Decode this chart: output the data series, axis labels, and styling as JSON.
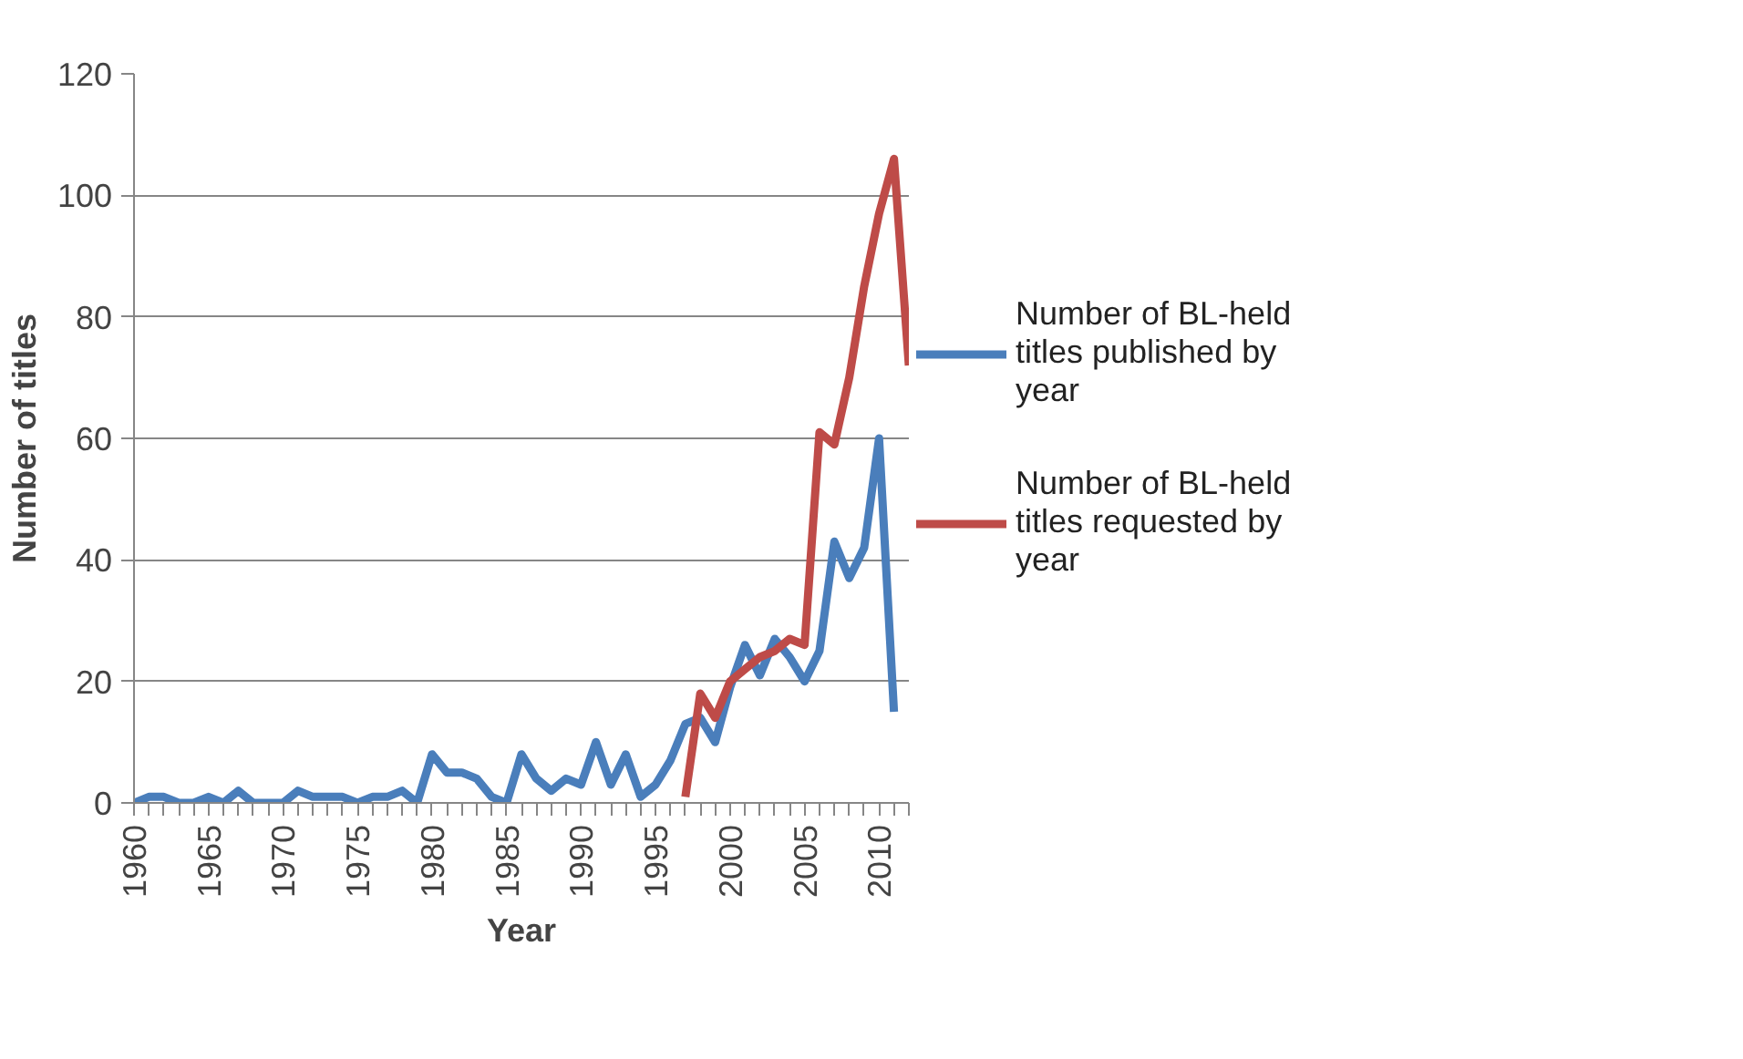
{
  "chart_data": {
    "type": "line",
    "xlabel": "Year",
    "ylabel": "Number of titles",
    "x": [
      1960,
      1961,
      1962,
      1963,
      1964,
      1965,
      1966,
      1967,
      1968,
      1969,
      1970,
      1971,
      1972,
      1973,
      1974,
      1975,
      1976,
      1977,
      1978,
      1979,
      1980,
      1981,
      1982,
      1983,
      1984,
      1985,
      1986,
      1987,
      1988,
      1989,
      1990,
      1991,
      1992,
      1993,
      1994,
      1995,
      1996,
      1997,
      1998,
      1999,
      2000,
      2001,
      2002,
      2003,
      2004,
      2005,
      2006,
      2007,
      2008,
      2009,
      2010,
      2011,
      2012
    ],
    "series": [
      {
        "name": "Number of BL-held titles published by year",
        "color": "#4a7ebb",
        "values": [
          0,
          1,
          1,
          0,
          0,
          1,
          0,
          2,
          0,
          0,
          0,
          2,
          1,
          1,
          1,
          0,
          1,
          1,
          2,
          0,
          8,
          5,
          5,
          4,
          1,
          0,
          8,
          4,
          2,
          4,
          3,
          10,
          3,
          8,
          1,
          3,
          7,
          13,
          14,
          10,
          19,
          26,
          21,
          27,
          24,
          20,
          25,
          43,
          37,
          42,
          60,
          15,
          null
        ]
      },
      {
        "name": "Number of BL-held titles requested by year",
        "color": "#be4b48",
        "values": [
          null,
          null,
          null,
          null,
          null,
          null,
          null,
          null,
          null,
          null,
          null,
          null,
          null,
          null,
          null,
          null,
          null,
          null,
          null,
          null,
          null,
          null,
          null,
          null,
          null,
          null,
          null,
          null,
          null,
          null,
          null,
          null,
          null,
          null,
          null,
          null,
          null,
          1,
          18,
          14,
          20,
          22,
          24,
          25,
          27,
          26,
          61,
          59,
          70,
          85,
          97,
          106,
          72
        ]
      }
    ],
    "xlim": [
      1960,
      2012
    ],
    "ylim": [
      0,
      120
    ],
    "yticks": [
      0,
      20,
      40,
      60,
      80,
      100,
      120
    ],
    "xticks": [
      1960,
      {
        "value": 1961,
        "label": null
      },
      {
        "value": 1962,
        "label": null
      },
      {
        "value": 1963,
        "label": null
      },
      {
        "value": 1964,
        "label": null
      },
      1965,
      {
        "value": 1966,
        "label": null
      },
      {
        "value": 1967,
        "label": null
      },
      {
        "value": 1968,
        "label": null
      },
      {
        "value": 1969,
        "label": null
      },
      1970,
      {
        "value": 1971,
        "label": null
      },
      {
        "value": 1972,
        "label": null
      },
      {
        "value": 1973,
        "label": null
      },
      {
        "value": 1974,
        "label": null
      },
      1975,
      {
        "value": 1976,
        "label": null
      },
      {
        "value": 1977,
        "label": null
      },
      {
        "value": 1978,
        "label": null
      },
      {
        "value": 1979,
        "label": null
      },
      1980,
      {
        "value": 1981,
        "label": null
      },
      {
        "value": 1982,
        "label": null
      },
      {
        "value": 1983,
        "label": null
      },
      {
        "value": 1984,
        "label": null
      },
      1985,
      {
        "value": 1986,
        "label": null
      },
      {
        "value": 1987,
        "label": null
      },
      {
        "value": 1988,
        "label": null
      },
      {
        "value": 1989,
        "label": null
      },
      1990,
      {
        "value": 1991,
        "label": null
      },
      {
        "value": 1992,
        "label": null
      },
      {
        "value": 1993,
        "label": null
      },
      {
        "value": 1994,
        "label": null
      },
      1995,
      {
        "value": 1996,
        "label": null
      },
      {
        "value": 1997,
        "label": null
      },
      {
        "value": 1998,
        "label": null
      },
      {
        "value": 1999,
        "label": null
      },
      2000,
      {
        "value": 2001,
        "label": null
      },
      {
        "value": 2002,
        "label": null
      },
      {
        "value": 2003,
        "label": null
      },
      {
        "value": 2004,
        "label": null
      },
      2005,
      {
        "value": 2006,
        "label": null
      },
      {
        "value": 2007,
        "label": null
      },
      {
        "value": 2008,
        "label": null
      },
      {
        "value": 2009,
        "label": null
      },
      2010,
      {
        "value": 2011,
        "label": null
      },
      {
        "value": 2012,
        "label": null
      }
    ],
    "grid": "y",
    "legend": "right",
    "marker": "none",
    "line_style": "solid"
  }
}
